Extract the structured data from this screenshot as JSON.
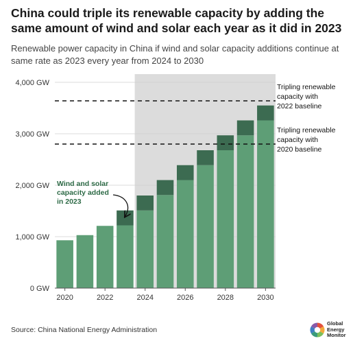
{
  "title": "China could triple its renewable capacity by adding the same amount of wind and solar each year as it did in 2023",
  "subtitle": "Renewable power capacity in China if wind and solar capacity additions continue at same rate as 2023 every year from 2024 to 2030",
  "source": "Source: China National Energy Administration",
  "logo": {
    "line1": "Global",
    "line2": "Energy",
    "line3": "Monitor"
  },
  "colors": {
    "base": "#5e9e76",
    "addition": "#3c6b51",
    "shade": "#dcdcdc",
    "annotation_green": "#2e6b47"
  },
  "chart_data": {
    "type": "bar",
    "stacked": true,
    "categories": [
      "2020",
      "2021",
      "2022",
      "2023",
      "2024",
      "2025",
      "2026",
      "2027",
      "2028",
      "2029",
      "2030"
    ],
    "series": [
      {
        "values": [
          930,
          1030,
          1210,
          1220,
          1510,
          1810,
          2100,
          2390,
          2680,
          2970,
          3260
        ]
      },
      {
        "values": [
          0,
          0,
          0,
          290,
          290,
          290,
          290,
          290,
          290,
          290,
          290
        ]
      }
    ],
    "x_tick_labels": [
      "2020",
      "2022",
      "2024",
      "2026",
      "2028",
      "2030"
    ],
    "y_ticks": [
      0,
      1000,
      2000,
      3000,
      4000
    ],
    "y_tick_labels": [
      "0 GW",
      "1,000 GW",
      "2,000 GW",
      "3,000 GW",
      "4,000 GW"
    ],
    "ylim": [
      0,
      4000
    ],
    "projection_shaded_from": "2024",
    "reference_lines": [
      {
        "value": 3640,
        "label_lines": [
          "Tripling renewable",
          "capacity with",
          "2022 baseline"
        ]
      },
      {
        "value": 2800,
        "label_lines": [
          "Tripling renewable",
          "capacity with",
          "2020 baseline"
        ]
      }
    ],
    "annotation": {
      "label_lines": [
        "Wind and solar",
        "capacity added",
        "in 2023"
      ],
      "points_to": "2023"
    },
    "grid": "horizontal",
    "legend": "none"
  }
}
